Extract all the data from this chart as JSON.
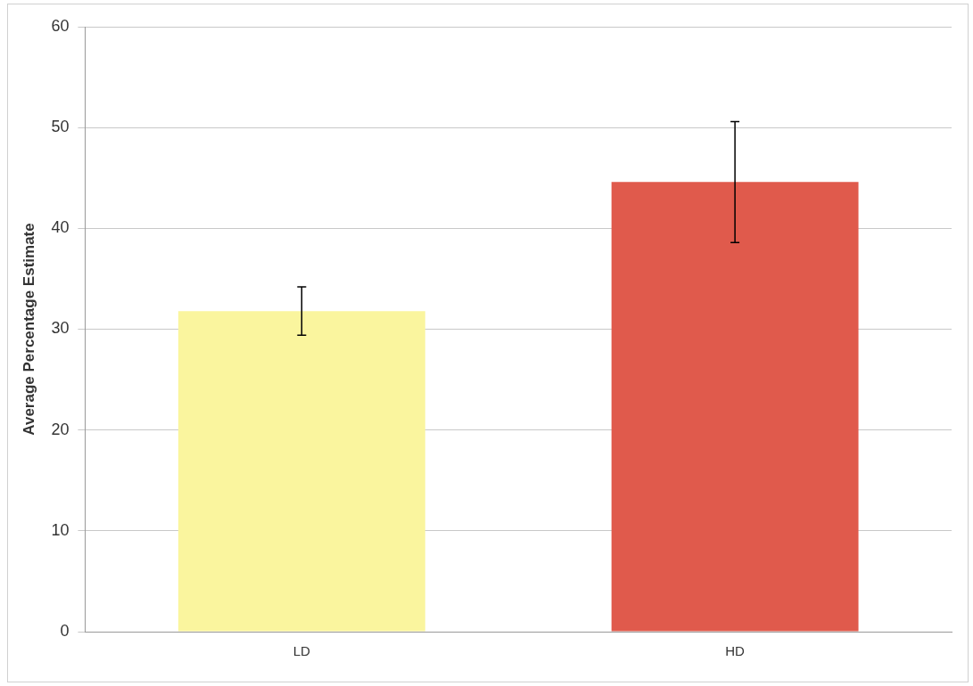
{
  "chart_data": {
    "type": "bar",
    "ylabel": "Average Percentage Estimate",
    "categories": [
      "LD",
      "HD"
    ],
    "values": [
      31.8,
      44.6
    ],
    "colors": [
      "#faf59e",
      "#e05a4c"
    ],
    "errors": [
      2.4,
      6.0
    ],
    "ylim": [
      0,
      60
    ],
    "yticks": [
      0,
      10,
      20,
      30,
      40,
      50,
      60
    ],
    "grid": "y",
    "legend": false
  }
}
